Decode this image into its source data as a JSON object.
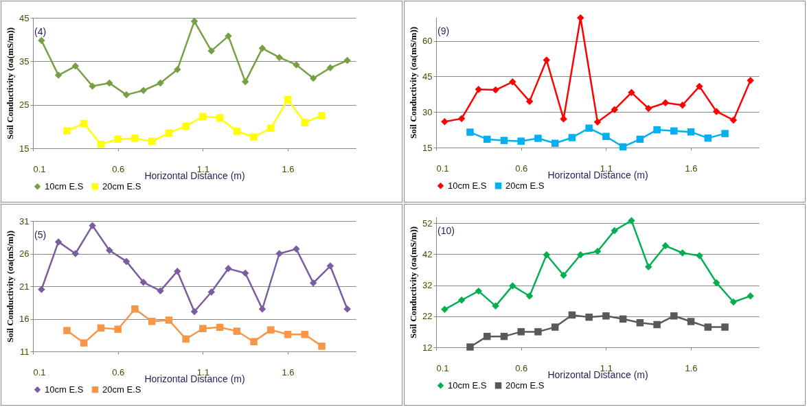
{
  "chart_data": [
    {
      "type": "line",
      "xlabel": "Horizontal Distance (m)",
      "ylabel": "Soil Conductivity (σa(mS/m))",
      "annotations": [
        "(4)"
      ],
      "xlim": [
        0.1,
        2.0
      ],
      "xticks": [
        0.1,
        0.6,
        1.1,
        1.6
      ],
      "ylim": [
        15,
        45
      ],
      "yticks": [
        15,
        25,
        35,
        45
      ],
      "grid": "y",
      "legend": "bottom",
      "series": [
        {
          "name": "10cm E.S",
          "color": "#77a043",
          "marker": "diamond",
          "x": [
            0.15,
            0.25,
            0.35,
            0.45,
            0.55,
            0.65,
            0.75,
            0.85,
            0.95,
            1.05,
            1.15,
            1.25,
            1.35,
            1.45,
            1.55,
            1.65,
            1.75,
            1.85,
            1.95
          ],
          "values": [
            39.8,
            31.8,
            33.9,
            29.3,
            30.0,
            27.3,
            28.3,
            30.0,
            33.1,
            44.2,
            37.4,
            40.8,
            30.3,
            38.0,
            35.9,
            34.2,
            31.1,
            33.5,
            35.2
          ]
        },
        {
          "name": "20cm E.S",
          "color": "#ffff00",
          "marker": "square",
          "x": [
            0.3,
            0.4,
            0.5,
            0.6,
            0.7,
            0.8,
            0.9,
            1.0,
            1.1,
            1.2,
            1.3,
            1.4,
            1.5,
            1.6,
            1.7,
            1.8
          ],
          "values": [
            19.0,
            20.7,
            15.9,
            17.1,
            17.3,
            16.6,
            18.5,
            20.1,
            22.3,
            22.0,
            18.9,
            17.6,
            19.6,
            26.2,
            20.9,
            22.5
          ]
        }
      ]
    },
    {
      "type": "line",
      "xlabel": "Horizontal Distance (m)",
      "ylabel": "Soil Conductivity (σa(mS/m))",
      "annotations": [
        "(9)"
      ],
      "xlim": [
        0.1,
        2.0
      ],
      "xticks": [
        0.1,
        0.6,
        1.1,
        1.6
      ],
      "ylim": [
        15,
        70
      ],
      "yticks": [
        15,
        30,
        45,
        60
      ],
      "grid": "y",
      "legend": "bottom",
      "series": [
        {
          "name": "10cm E.S",
          "color": "#ff0000",
          "marker": "diamond",
          "x": [
            0.15,
            0.25,
            0.35,
            0.45,
            0.55,
            0.65,
            0.75,
            0.85,
            0.95,
            1.05,
            1.15,
            1.25,
            1.35,
            1.45,
            1.55,
            1.65,
            1.75,
            1.85,
            1.95
          ],
          "values": [
            25.9,
            27.2,
            39.5,
            39.3,
            42.7,
            34.5,
            51.9,
            27.1,
            69.7,
            25.8,
            31.0,
            38.2,
            31.5,
            33.9,
            32.9,
            40.8,
            30.2,
            26.6,
            43.3
          ]
        },
        {
          "name": "20cm E.S",
          "color": "#00b0f0",
          "marker": "square",
          "x": [
            0.3,
            0.4,
            0.5,
            0.6,
            0.7,
            0.8,
            0.9,
            1.0,
            1.1,
            1.2,
            1.3,
            1.4,
            1.5,
            1.6,
            1.7,
            1.8
          ],
          "values": [
            21.5,
            18.5,
            18.0,
            17.7,
            18.9,
            16.8,
            19.2,
            23.2,
            19.7,
            15.3,
            18.5,
            22.5,
            22.0,
            21.6,
            19.0,
            20.9
          ]
        }
      ]
    },
    {
      "type": "line",
      "xlabel": "Horizontal Distance (m)",
      "ylabel": "Soil Conductivity (σa(mS/m))",
      "annotations": [
        "(5)"
      ],
      "xlim": [
        0.1,
        2.0
      ],
      "xticks": [
        0.1,
        0.6,
        1.1,
        1.6
      ],
      "ylim": [
        11,
        31
      ],
      "yticks": [
        11,
        16,
        21,
        26,
        31
      ],
      "grid": "y",
      "legend": "bottom",
      "series": [
        {
          "name": "10cm E.S",
          "color": "#7a5ca0",
          "marker": "diamond",
          "x": [
            0.15,
            0.25,
            0.35,
            0.45,
            0.55,
            0.65,
            0.75,
            0.85,
            0.95,
            1.05,
            1.15,
            1.25,
            1.35,
            1.45,
            1.55,
            1.65,
            1.75,
            1.85,
            1.95
          ],
          "values": [
            20.5,
            27.8,
            26.0,
            30.3,
            26.5,
            24.8,
            21.6,
            20.3,
            23.3,
            17.1,
            20.1,
            23.7,
            23.0,
            17.5,
            26.0,
            26.7,
            21.5,
            24.1,
            17.5
          ]
        },
        {
          "name": "20cm E.S",
          "color": "#f79646",
          "marker": "square",
          "x": [
            0.3,
            0.4,
            0.5,
            0.6,
            0.7,
            0.8,
            0.9,
            1.0,
            1.1,
            1.2,
            1.3,
            1.4,
            1.5,
            1.6,
            1.7,
            1.8
          ],
          "values": [
            14.2,
            12.3,
            14.6,
            14.4,
            17.5,
            15.6,
            15.8,
            12.9,
            14.5,
            14.7,
            14.1,
            12.5,
            14.3,
            13.6,
            13.6,
            11.8
          ]
        }
      ]
    },
    {
      "type": "line",
      "xlabel": "Horizontal Distance (m)",
      "ylabel": "Soil Conductivity (σa(mS/m))",
      "annotations": [
        "(10)"
      ],
      "xlim": [
        0.1,
        2.0
      ],
      "xticks": [
        0.1,
        0.6,
        1.1,
        1.6
      ],
      "ylim": [
        12,
        54
      ],
      "yticks": [
        12,
        22,
        32,
        42,
        52
      ],
      "grid": "y",
      "legend": "bottom",
      "series": [
        {
          "name": "10cm E.S",
          "color": "#00b050",
          "marker": "diamond",
          "x": [
            0.15,
            0.25,
            0.35,
            0.45,
            0.55,
            0.65,
            0.75,
            0.85,
            0.95,
            1.05,
            1.15,
            1.25,
            1.35,
            1.45,
            1.55,
            1.65,
            1.75,
            1.85,
            1.95
          ],
          "values": [
            24.2,
            27.2,
            30.1,
            25.3,
            31.8,
            28.5,
            41.8,
            35.2,
            41.8,
            42.9,
            49.6,
            52.8,
            37.9,
            44.7,
            42.4,
            41.5,
            32.8,
            26.6,
            28.5
          ]
        },
        {
          "name": "20cm E.S",
          "color": "#595959",
          "marker": "square",
          "x": [
            0.3,
            0.4,
            0.5,
            0.6,
            0.7,
            0.8,
            0.9,
            1.0,
            1.1,
            1.2,
            1.3,
            1.4,
            1.5,
            1.6,
            1.7,
            1.8
          ],
          "values": [
            12.1,
            15.5,
            15.5,
            17.0,
            17.0,
            18.5,
            22.4,
            21.7,
            22.1,
            21.1,
            19.9,
            19.3,
            22.1,
            20.3,
            18.5,
            18.5
          ]
        }
      ]
    }
  ]
}
